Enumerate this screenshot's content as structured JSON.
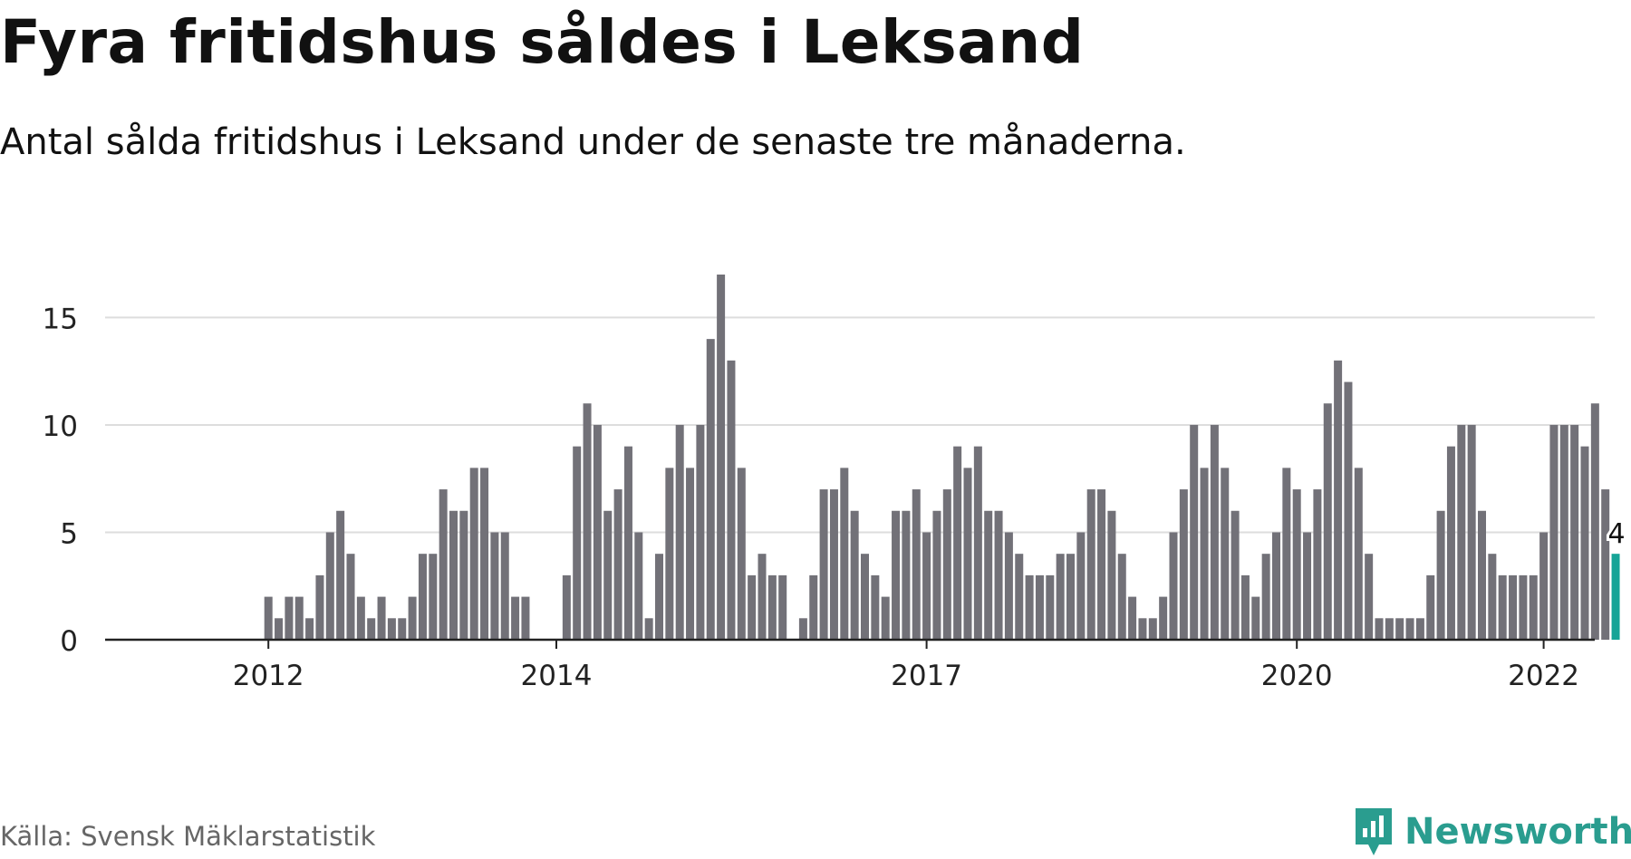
{
  "header": {
    "title": "Fyra fritidshus såldes i Leksand",
    "subtitle": "Antal sålda fritidshus i Leksand under de senaste tre månaderna."
  },
  "footer": {
    "source": "Källa: Svensk Mäklarstatistik",
    "brand": "Newsworthy"
  },
  "colors": {
    "bar": "#727178",
    "highlight": "#16a497",
    "grid": "#dddddd",
    "axis": "#222222",
    "brand": "#2a9d8f"
  },
  "chart_data": {
    "type": "bar",
    "title": "Fyra fritidshus såldes i Leksand",
    "subtitle": "Antal sålda fritidshus i Leksand under de senaste tre månaderna.",
    "x_start": "2011-01",
    "x_end": "2023-10",
    "first_bar": "2012-01",
    "x_ticks": [
      {
        "label": "2012",
        "date": "2012-01"
      },
      {
        "label": "2014",
        "date": "2014-05"
      },
      {
        "label": "2017",
        "date": "2017-05"
      },
      {
        "label": "2020",
        "date": "2020-05"
      },
      {
        "label": "2022",
        "date": "2022-05"
      }
    ],
    "y_ticks": [
      0,
      5,
      10,
      15
    ],
    "ylim": [
      0,
      17
    ],
    "grid": true,
    "values": [
      2,
      1,
      2,
      2,
      1,
      3,
      5,
      6,
      4,
      2,
      1,
      2,
      1,
      1,
      2,
      4,
      4,
      7,
      6,
      6,
      8,
      8,
      5,
      5,
      2,
      2,
      0,
      0,
      0,
      3,
      9,
      11,
      10,
      6,
      7,
      9,
      5,
      1,
      4,
      8,
      10,
      8,
      10,
      14,
      17,
      13,
      8,
      3,
      4,
      3,
      3,
      0,
      1,
      3,
      7,
      7,
      8,
      6,
      4,
      3,
      2,
      6,
      6,
      7,
      5,
      6,
      7,
      9,
      8,
      9,
      6,
      6,
      5,
      4,
      3,
      3,
      3,
      4,
      4,
      5,
      7,
      7,
      6,
      4,
      2,
      1,
      1,
      2,
      5,
      7,
      10,
      8,
      10,
      8,
      6,
      3,
      2,
      4,
      5,
      8,
      7,
      5,
      7,
      11,
      13,
      12,
      8,
      4,
      1,
      1,
      1,
      1,
      1,
      3,
      6,
      9,
      10,
      10,
      6,
      4,
      3,
      3,
      3,
      3,
      5,
      10,
      10,
      10,
      9,
      11,
      7,
      4
    ],
    "highlight_last": true,
    "last_label": "4"
  }
}
